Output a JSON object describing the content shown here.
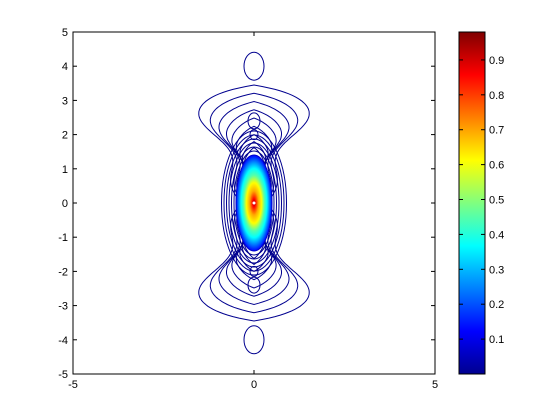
{
  "chart_data": {
    "type": "contour",
    "title": "",
    "xlabel": "",
    "ylabel": "",
    "xlim": [
      -5,
      5
    ],
    "ylim": [
      -5,
      5
    ],
    "grid": false,
    "x_ticks": [
      "-5",
      "0",
      "5"
    ],
    "y_ticks": [
      "5",
      "4",
      "3",
      "2",
      "1",
      "0",
      "-1",
      "-2",
      "-3",
      "-4",
      "-5"
    ],
    "x_tick_values": [
      -5,
      0,
      5
    ],
    "y_tick_values": [
      5,
      4,
      3,
      2,
      1,
      0,
      -1,
      -2,
      -3,
      -4,
      -5
    ],
    "colormap": "jet",
    "colorbar": {
      "range": [
        0,
        0.98
      ],
      "ticks": [
        "0.9",
        "0.8",
        "0.7",
        "0.6",
        "0.5",
        "0.4",
        "0.3",
        "0.2",
        "0.1"
      ],
      "tick_values": [
        0.9,
        0.8,
        0.7,
        0.6,
        0.5,
        0.4,
        0.3,
        0.2,
        0.1
      ]
    },
    "peak": {
      "x": 0,
      "y": 0,
      "value": 0.98
    },
    "filled_region": {
      "x_range": [
        -0.5,
        0.5
      ],
      "y_range": [
        -1.4,
        1.4
      ]
    },
    "outer_contour_extent": {
      "x_range": [
        -1.5,
        1.5
      ],
      "y_range": [
        -4.4,
        4.4
      ]
    },
    "line_color": "#00008f"
  }
}
